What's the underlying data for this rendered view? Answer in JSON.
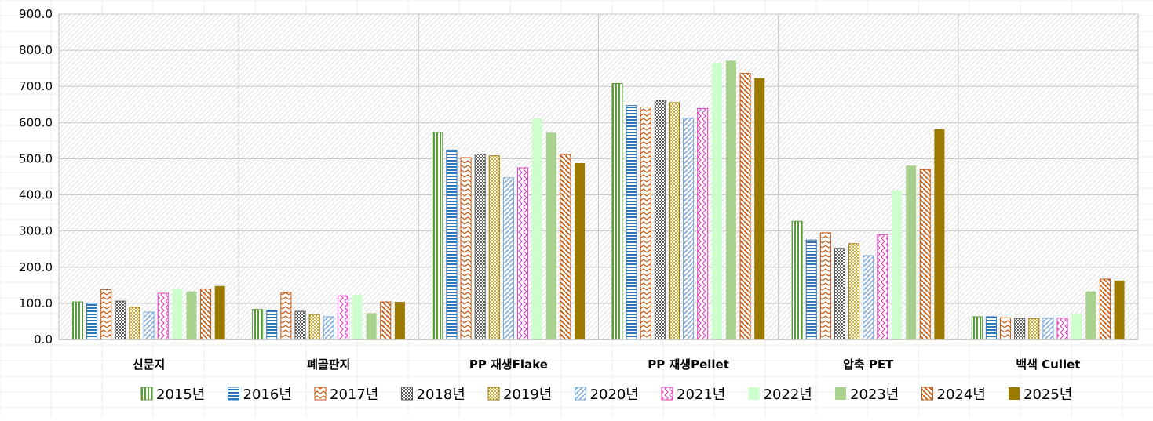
{
  "chart_data": {
    "type": "bar",
    "categories": [
      "신문지",
      "폐골판지",
      "PP 재생Flake",
      "PP 재생Pellet",
      "압축 PET",
      "백색 Cullet"
    ],
    "series": [
      {
        "name": "2015년",
        "values": [
          104,
          83,
          573,
          708,
          327,
          63
        ],
        "color": "#5a9b3a",
        "pattern": "vlines"
      },
      {
        "name": "2016년",
        "values": [
          100,
          80,
          524,
          647,
          275,
          63
        ],
        "color": "#2e75b6",
        "pattern": "hlines"
      },
      {
        "name": "2017년",
        "values": [
          138,
          130,
          503,
          643,
          295,
          60
        ],
        "color": "#c55a11",
        "pattern": "zigzag"
      },
      {
        "name": "2018년",
        "values": [
          106,
          78,
          513,
          662,
          252,
          58
        ],
        "color": "#595959",
        "pattern": "checker"
      },
      {
        "name": "2019년",
        "values": [
          89,
          69,
          508,
          655,
          265,
          58
        ],
        "color": "#9c7a00",
        "pattern": "dots"
      },
      {
        "name": "2020년",
        "values": [
          76,
          63,
          447,
          612,
          232,
          59
        ],
        "color": "#7aa7d8",
        "pattern": "diag-up"
      },
      {
        "name": "2021년",
        "values": [
          128,
          121,
          475,
          639,
          290,
          59
        ],
        "color": "#e040c0",
        "pattern": "zigzag-v"
      },
      {
        "name": "2022년",
        "values": [
          141,
          123,
          612,
          765,
          412,
          72
        ],
        "color": "#ccffcc",
        "pattern": "solid"
      },
      {
        "name": "2023년",
        "values": [
          133,
          73,
          572,
          771,
          481,
          133
        ],
        "color": "#a9d18e",
        "pattern": "solid"
      },
      {
        "name": "2024년",
        "values": [
          140,
          104,
          512,
          736,
          470,
          167
        ],
        "color": "#c55a11",
        "pattern": "diag-down"
      },
      {
        "name": "2025년",
        "values": [
          148,
          104,
          488,
          723,
          582,
          163
        ],
        "color": "#9c7a00",
        "pattern": "solid"
      }
    ],
    "yticks": [
      "0.0",
      "100.0",
      "200.0",
      "300.0",
      "400.0",
      "500.0",
      "600.0",
      "700.0",
      "800.0",
      "900.0"
    ],
    "ylim": [
      0,
      900
    ],
    "grid": true,
    "legend": "bottom",
    "title": "",
    "xlabel": "",
    "ylabel": ""
  }
}
